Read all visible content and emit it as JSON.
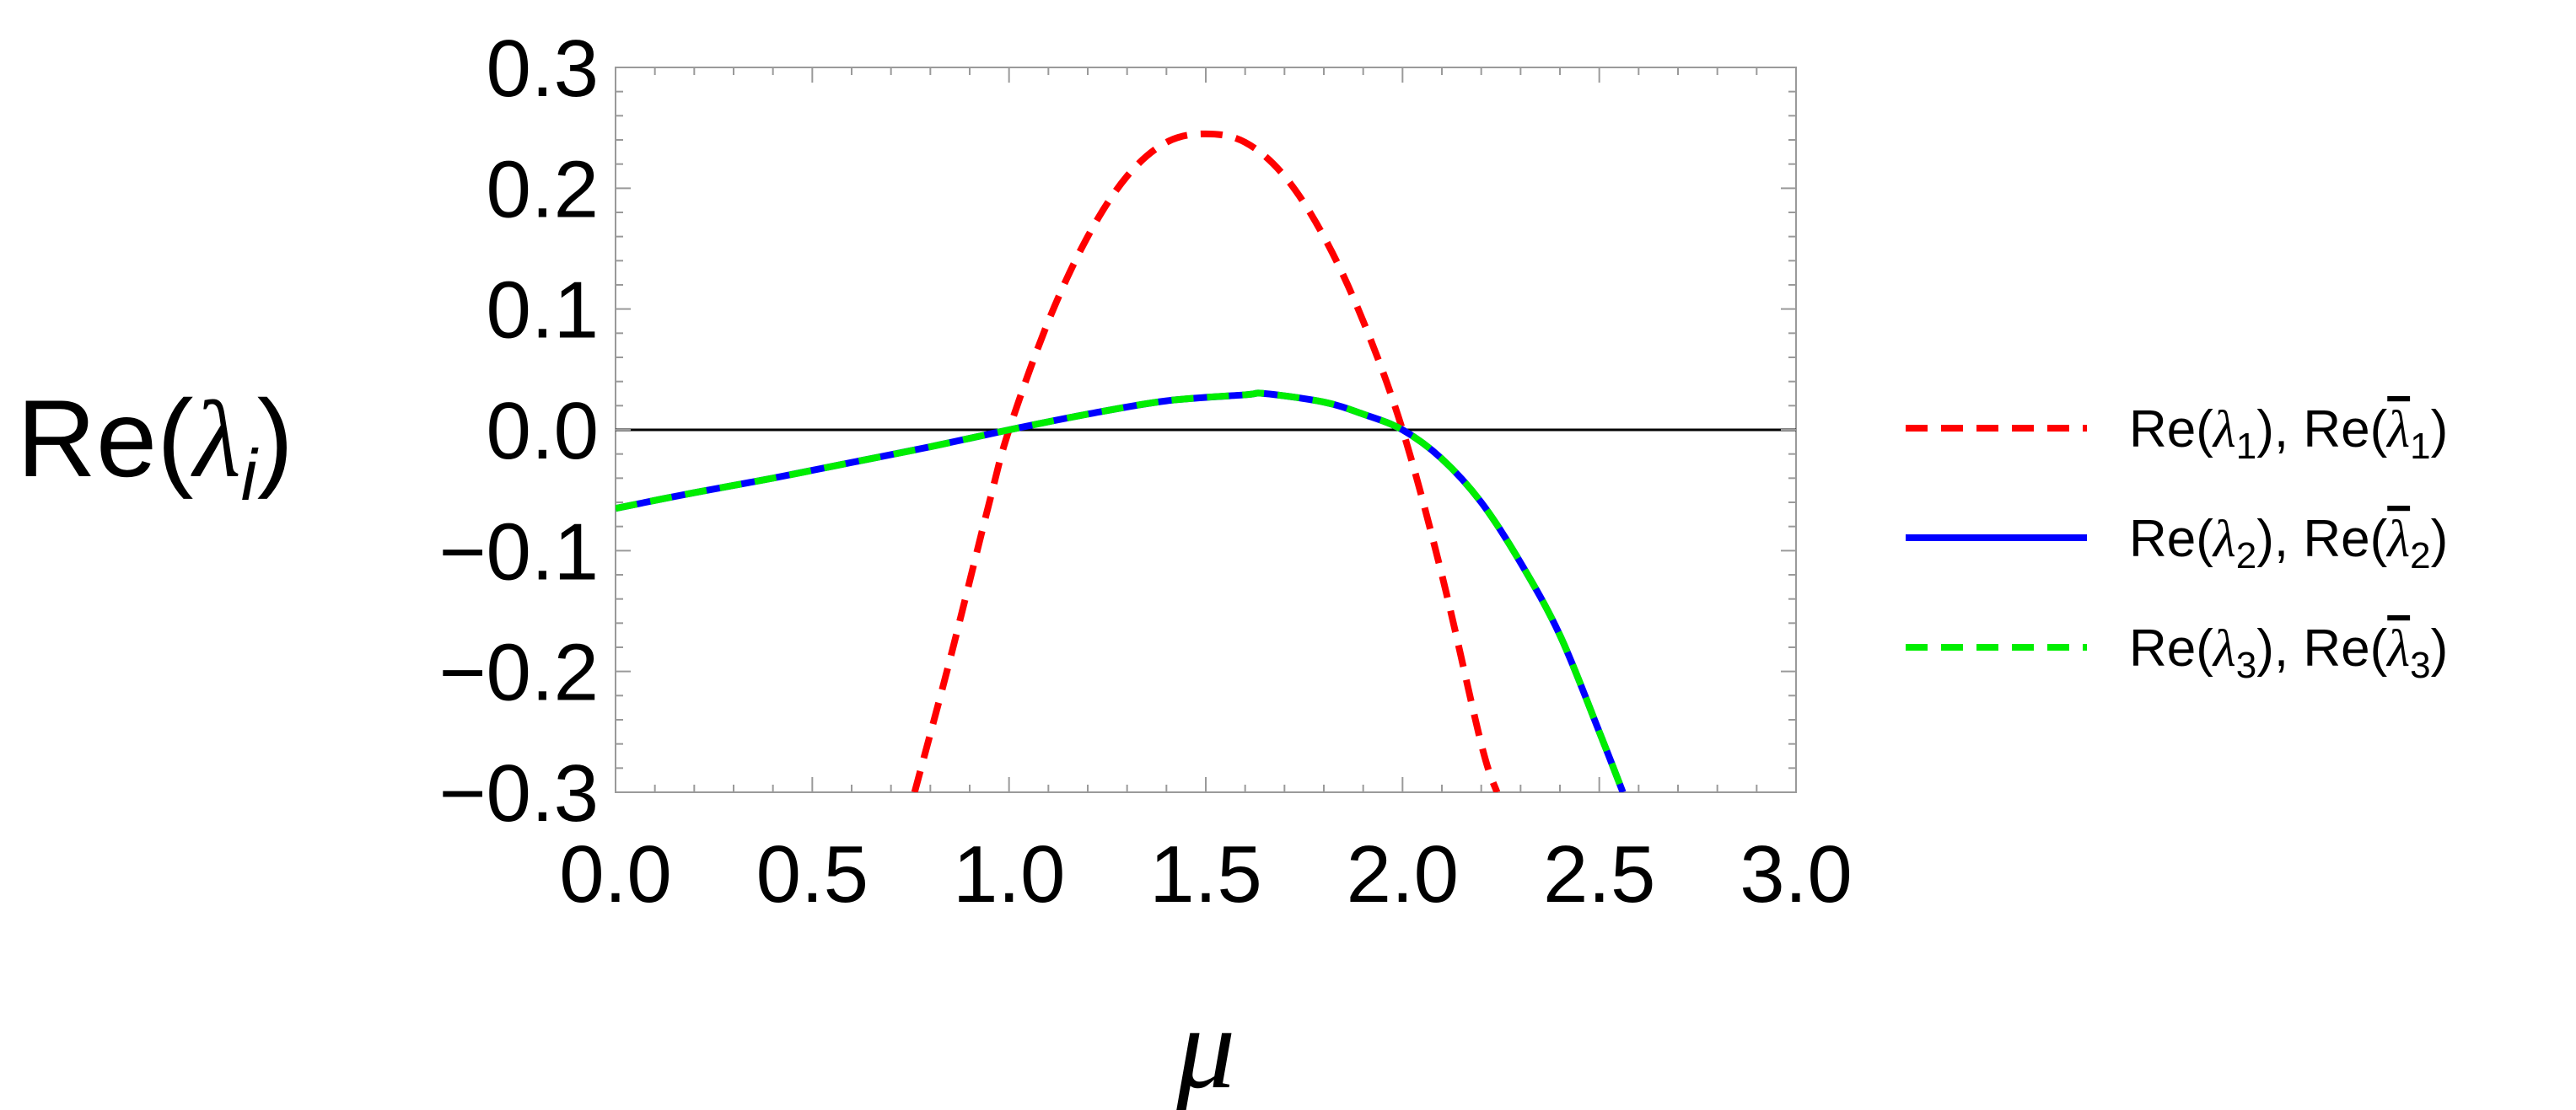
{
  "chart_data": {
    "type": "line",
    "xlabel": "μ",
    "ylabel": "Re(λᵢ)",
    "xlim": [
      0.0,
      3.0
    ],
    "ylim": [
      -0.3,
      0.3
    ],
    "xticks": [
      "0.0",
      "0.5",
      "1.0",
      "1.5",
      "2.0",
      "2.5",
      "3.0"
    ],
    "yticks": [
      "−0.3",
      "−0.2",
      "−0.1",
      "0.0",
      "0.1",
      "0.2",
      "0.3"
    ],
    "reference_line_y": 0.0,
    "grid": false,
    "legend_position": "right",
    "series": [
      {
        "name": "Re(λ1), Re(λ̄1)",
        "legend": {
          "prefix": "Re(",
          "sym": "λ",
          "sub": "1",
          "mid": "), Re(",
          "suffix": ")"
        },
        "color": "#ff0000",
        "style": "dashed",
        "x": [
          0.76,
          0.85,
          0.95,
          1.0,
          1.1,
          1.2,
          1.3,
          1.4,
          1.5,
          1.6,
          1.7,
          1.8,
          1.9,
          2.0,
          2.1,
          2.2,
          2.24
        ],
        "y": [
          -0.3,
          -0.19,
          -0.06,
          0.0,
          0.09,
          0.16,
          0.21,
          0.238,
          0.245,
          0.238,
          0.21,
          0.16,
          0.09,
          0.0,
          -0.12,
          -0.26,
          -0.3
        ]
      },
      {
        "name": "Re(λ2), Re(λ̄2)",
        "legend": {
          "prefix": "Re(",
          "sym": "λ",
          "sub": "2",
          "mid": "), Re(",
          "suffix": ")"
        },
        "color": "#0000ff",
        "style": "solid",
        "x": [
          0.0,
          0.2,
          0.4,
          0.6,
          0.8,
          1.0,
          1.2,
          1.4,
          1.6,
          1.65,
          1.8,
          1.9,
          2.0,
          2.1,
          2.2,
          2.3,
          2.4,
          2.5,
          2.56
        ],
        "y": [
          -0.065,
          -0.052,
          -0.04,
          -0.027,
          -0.014,
          0.0,
          0.013,
          0.024,
          0.029,
          0.03,
          0.023,
          0.013,
          0.0,
          -0.024,
          -0.06,
          -0.11,
          -0.17,
          -0.25,
          -0.3
        ]
      },
      {
        "name": "Re(λ3), Re(λ̄3)",
        "legend": {
          "prefix": "Re(",
          "sym": "λ",
          "sub": "3",
          "mid": "), Re(",
          "suffix": ")"
        },
        "color": "#00ee00",
        "style": "dashed",
        "x": [
          0.0,
          0.2,
          0.4,
          0.6,
          0.8,
          1.0,
          1.2,
          1.4,
          1.6,
          1.65,
          1.8,
          1.9,
          2.0,
          2.1,
          2.2,
          2.3,
          2.4,
          2.5,
          2.56
        ],
        "y": [
          -0.065,
          -0.052,
          -0.04,
          -0.027,
          -0.014,
          0.0,
          0.013,
          0.024,
          0.029,
          0.03,
          0.023,
          0.013,
          0.0,
          -0.024,
          -0.06,
          -0.11,
          -0.17,
          -0.25,
          -0.3
        ]
      }
    ]
  }
}
